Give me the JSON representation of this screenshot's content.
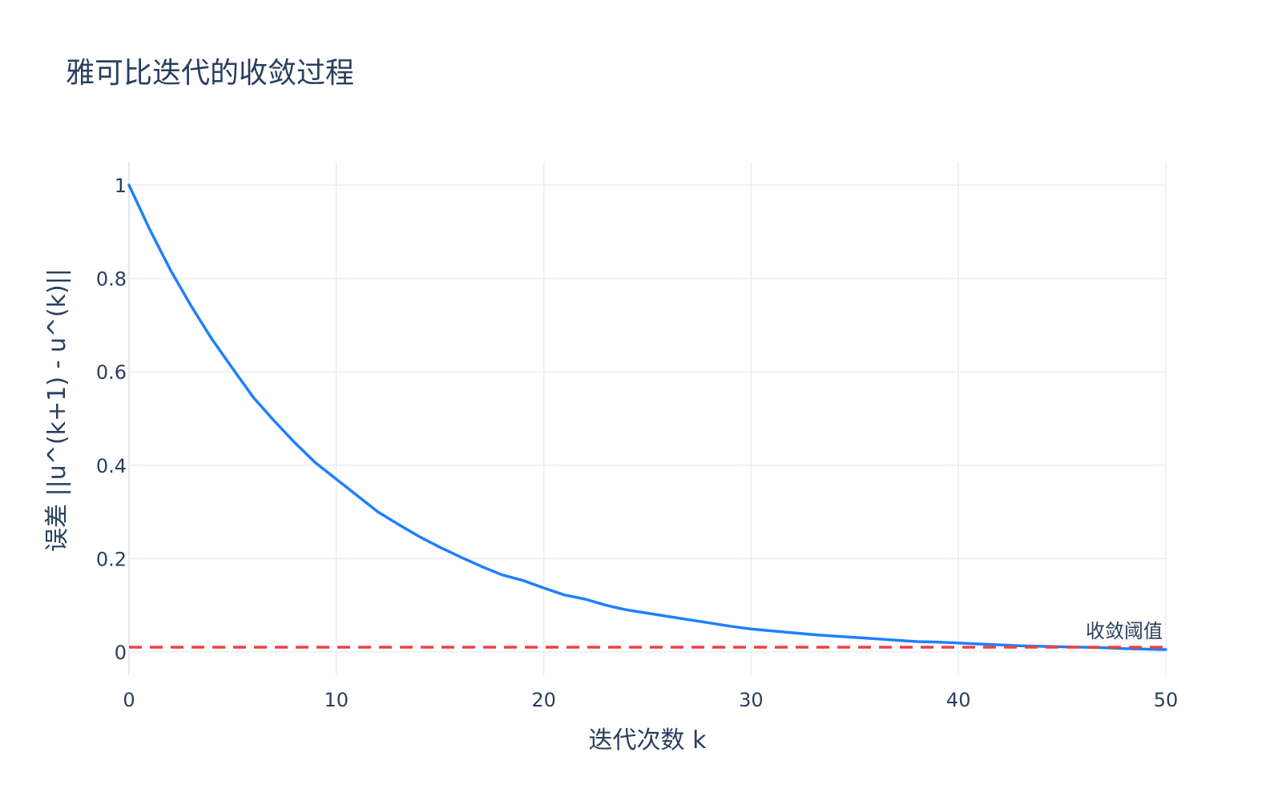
{
  "chart_data": {
    "type": "line",
    "title": "雅可比迭代的收敛过程",
    "xlabel": "迭代次数 k",
    "ylabel": "误差 ||u^(k+1) - u^(k)||",
    "xlim": [
      0,
      50
    ],
    "ylim": [
      -0.05,
      1.05
    ],
    "x_ticks": [
      0,
      10,
      20,
      30,
      40,
      50
    ],
    "y_ticks": [
      0,
      0.2,
      0.4,
      0.6,
      0.8,
      1
    ],
    "x_tick_labels": [
      "0",
      "10",
      "20",
      "30",
      "40",
      "50"
    ],
    "y_tick_labels": [
      "0",
      "0.2",
      "0.4",
      "0.6",
      "0.8",
      "1"
    ],
    "grid": true,
    "series": [
      {
        "color": "#1f7fff",
        "x": [
          0,
          1,
          2,
          3,
          4,
          5,
          6,
          7,
          8,
          9,
          10,
          11,
          12,
          13,
          14,
          15,
          16,
          17,
          18,
          19,
          20,
          21,
          22,
          23,
          24,
          25,
          26,
          27,
          28,
          29,
          30,
          31,
          32,
          33,
          34,
          35,
          36,
          37,
          38,
          39,
          40,
          41,
          42,
          43,
          44,
          45,
          46,
          47,
          48,
          49,
          50
        ],
        "y": [
          1.0,
          0.905,
          0.818,
          0.741,
          0.67,
          0.607,
          0.545,
          0.495,
          0.448,
          0.405,
          0.37,
          0.335,
          0.3,
          0.273,
          0.247,
          0.224,
          0.203,
          0.183,
          0.165,
          0.153,
          0.137,
          0.122,
          0.113,
          0.1,
          0.09,
          0.083,
          0.076,
          0.069,
          0.062,
          0.055,
          0.049,
          0.045,
          0.041,
          0.037,
          0.034,
          0.031,
          0.028,
          0.025,
          0.022,
          0.021,
          0.019,
          0.017,
          0.015,
          0.013,
          0.012,
          0.011,
          0.01,
          0.009,
          0.007,
          0.006,
          0.005
        ]
      }
    ],
    "threshold": {
      "value": 0.01,
      "color": "#ef4040",
      "style": "dashed",
      "label": "收敛阈值"
    }
  }
}
